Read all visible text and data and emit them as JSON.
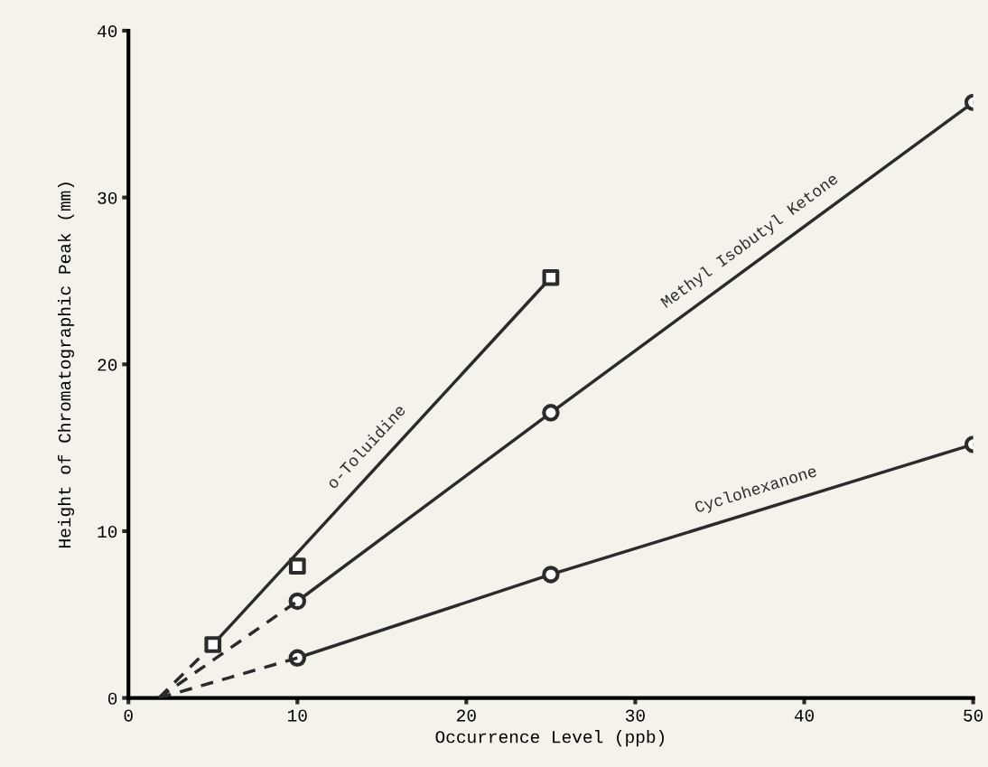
{
  "chart_data": {
    "type": "line",
    "xlabel": "Occurrence Level (ppb)",
    "ylabel": "Height of Chromatographic Peak (mm)",
    "xlim": [
      0,
      50
    ],
    "ylim": [
      0,
      40
    ],
    "xticks": [
      0,
      10,
      20,
      30,
      40,
      50
    ],
    "yticks": [
      0,
      10,
      20,
      30,
      40
    ],
    "grid": false,
    "legend": false,
    "series": [
      {
        "type": "scatter",
        "color": "#2b2b2b",
        "marker": "square",
        "x": [
          5,
          10,
          25
        ],
        "values": [
          3.2,
          7.9,
          25.2
        ]
      },
      {
        "name": "o-Toluidine",
        "color": "#2b2b2b",
        "marker": "none",
        "line_style": "solid",
        "x": [
          5,
          25
        ],
        "values": [
          3.2,
          25.2
        ]
      },
      {
        "color": "#2b2b2b",
        "marker": "none",
        "line_style": "dashed",
        "x": [
          1.8,
          5
        ],
        "values": [
          0,
          3.2
        ]
      },
      {
        "name": "Methyl Isobutyl Ketone",
        "color": "#2b2b2b",
        "marker": "circle",
        "line_style": "solid",
        "x": [
          10,
          25,
          50
        ],
        "values": [
          5.8,
          17.1,
          35.7
        ]
      },
      {
        "color": "#2b2b2b",
        "marker": "none",
        "line_style": "dashed",
        "x": [
          1.8,
          10
        ],
        "values": [
          0,
          5.8
        ]
      },
      {
        "name": "Cyclohexanone",
        "color": "#2b2b2b",
        "marker": "circle",
        "line_style": "solid",
        "x": [
          10,
          25,
          50
        ],
        "values": [
          2.4,
          7.4,
          15.2
        ]
      },
      {
        "color": "#2b2b2b",
        "marker": "none",
        "line_style": "dashed",
        "x": [
          1.8,
          10
        ],
        "values": [
          0,
          2.4
        ]
      }
    ]
  }
}
